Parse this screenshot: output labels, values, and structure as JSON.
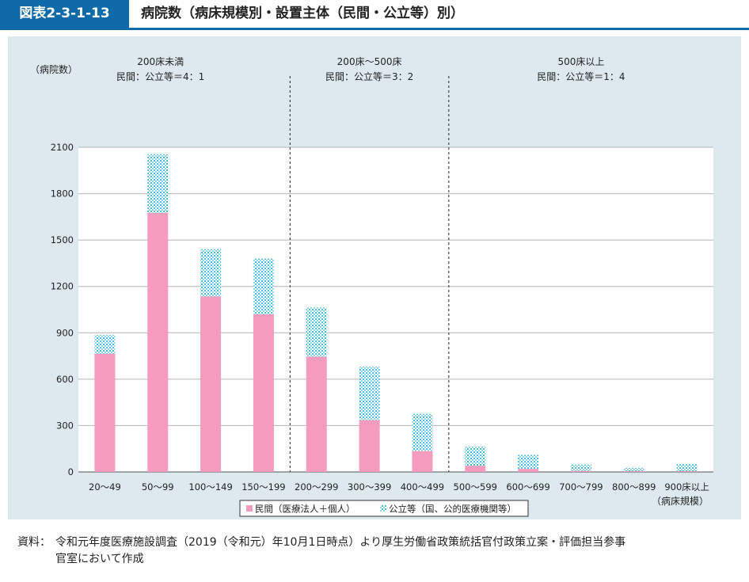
{
  "header": {
    "tag": "図表2-3-1-13",
    "title": "病院数（病床規模別・設置主体（民間・公立等）別）"
  },
  "source": {
    "label": "資料：",
    "line1": "令和元年度医療施設調査（2019（令和元）年10月1日時点）より厚生労働省政策統括官付政策立案・評価担当参事",
    "line2": "官室において作成"
  },
  "chart_data": {
    "type": "bar",
    "stacked": true,
    "ylabel": "（病院数）",
    "xlabel": "（病床規模）",
    "ylim": [
      0,
      2100
    ],
    "yticks": [
      0,
      300,
      600,
      900,
      1200,
      1500,
      1800,
      2100
    ],
    "grid": true,
    "legend_position": "bottom-center",
    "categories": [
      "20～49",
      "50～99",
      "100～149",
      "150～199",
      "200～299",
      "300～399",
      "400～499",
      "500～599",
      "600～699",
      "700～799",
      "800～899",
      "900床以上"
    ],
    "series": [
      {
        "name": "民間（医療法人＋個人）",
        "color": "#f59bbd",
        "pattern": "solid",
        "values": [
          765,
          1675,
          1135,
          1020,
          745,
          335,
          135,
          40,
          20,
          7,
          5,
          5
        ]
      },
      {
        "name": "公立等（国、公的医療機関等）",
        "color": "#5fc4dc",
        "pattern": "dotted",
        "values": [
          120,
          380,
          305,
          360,
          320,
          345,
          240,
          125,
          90,
          40,
          20,
          45
        ]
      }
    ],
    "groups": [
      {
        "title": "200床未満",
        "ratio": "民間：公立等＝4：1",
        "start": 0,
        "end": 3
      },
      {
        "title": "200床～500床",
        "ratio": "民間：公立等＝3：2",
        "start": 4,
        "end": 6
      },
      {
        "title": "500床以上",
        "ratio": "民間：公立等＝1：4",
        "start": 7,
        "end": 11
      }
    ]
  }
}
